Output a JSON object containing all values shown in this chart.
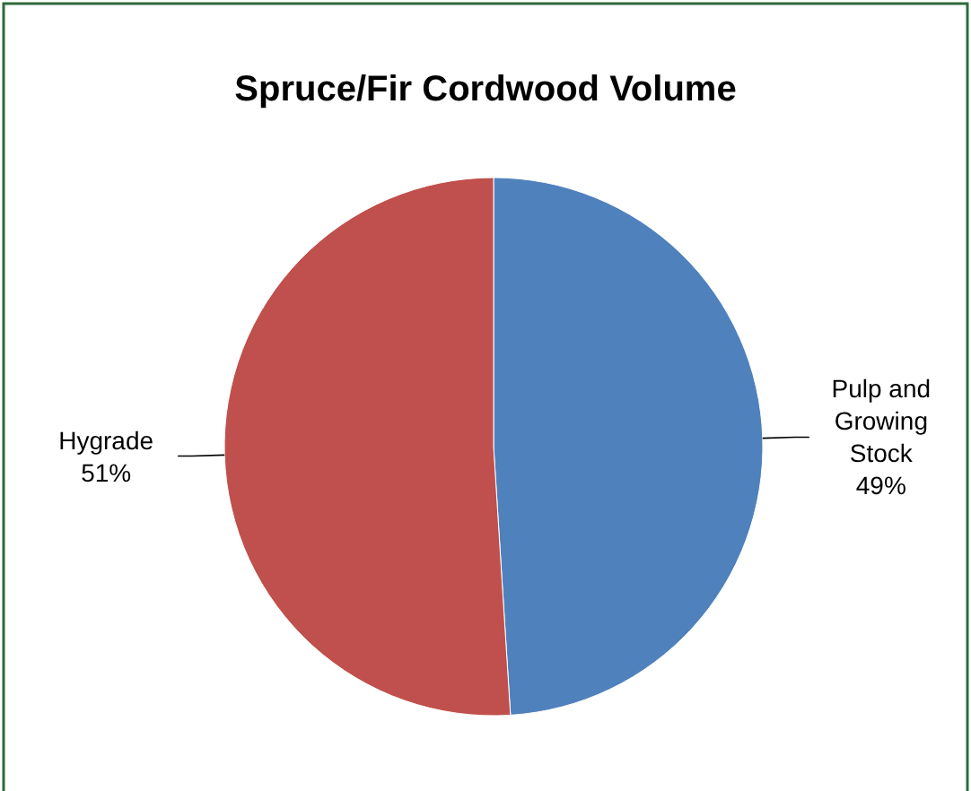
{
  "chart_data": {
    "type": "pie",
    "title": "Spruce/Fir Cordwood Volume",
    "categories": [
      "Pulp and Growing Stock",
      "Hygrade"
    ],
    "values": [
      49,
      51
    ],
    "colors": [
      "#4f81bd",
      "#c0504d"
    ],
    "value_labels": [
      "49%",
      "51%"
    ]
  }
}
